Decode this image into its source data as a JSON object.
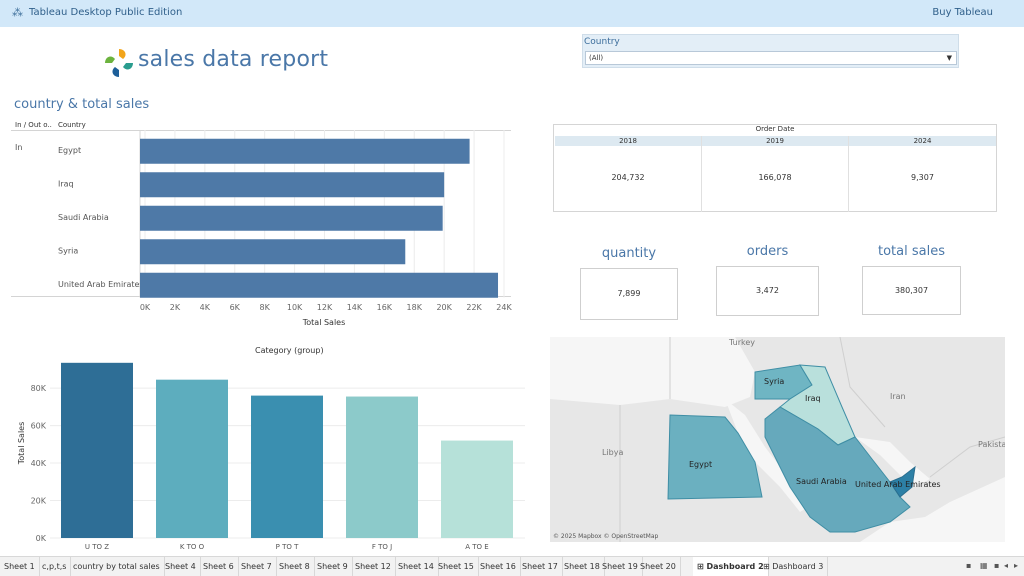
{
  "app": {
    "title": "Tableau Desktop Public Edition",
    "buy_label": "Buy Tableau"
  },
  "report": {
    "title": "sales data report"
  },
  "filter": {
    "label": "Country",
    "value": "(All)"
  },
  "bar_section": {
    "title": "country & total sales",
    "col_in_out": "In / Out o..",
    "col_country": "Country",
    "in_label": "In"
  },
  "order_table": {
    "title": "Order Date",
    "years": [
      "2018",
      "2019",
      "2024"
    ],
    "values": [
      "204,732",
      "166,078",
      "9,307"
    ]
  },
  "kpis": [
    {
      "label": "quantity",
      "value": "7,899"
    },
    {
      "label": "orders",
      "value": "3,472"
    },
    {
      "label": "total sales",
      "value": "380,307"
    }
  ],
  "map": {
    "attribution": "© 2025 Mapbox © OpenStreetMap",
    "labels": [
      "Turkey",
      "Iran",
      "Libya",
      "Pakista"
    ],
    "countries": [
      "Syria",
      "Iraq",
      "Egypt",
      "Saudi Arabia",
      "United Arab Emirates"
    ],
    "colors": {
      "Syria": "#6fb5c3",
      "Iraq": "#b9e0dc",
      "Egypt": "#6bb0c0",
      "Saudi Arabia": "#66a9bc",
      "United Arab Emirates": "#2d80a6"
    }
  },
  "chart_data": [
    {
      "type": "bar",
      "orientation": "horizontal",
      "categories": [
        "Egypt",
        "Iraq",
        "Saudi Arabia",
        "Syria",
        "United Arab Emirates"
      ],
      "values": [
        21700,
        20000,
        19900,
        17400,
        23600
      ],
      "xlabel": "Total Sales",
      "xlim": [
        0,
        24000
      ],
      "xticks": [
        "0K",
        "2K",
        "4K",
        "6K",
        "8K",
        "10K",
        "12K",
        "14K",
        "16K",
        "18K",
        "20K",
        "22K",
        "24K"
      ],
      "color": "#4e79a7",
      "grid": true
    },
    {
      "type": "bar",
      "title": "Category (group)",
      "categories": [
        "U TO Z",
        "K TO O",
        "P TO T",
        "F TO J",
        "A TO E"
      ],
      "values": [
        93500,
        84500,
        76000,
        75500,
        52000
      ],
      "ylabel": "Total Sales",
      "ylim": [
        0,
        95000
      ],
      "yticks": [
        "0K",
        "20K",
        "40K",
        "60K",
        "80K"
      ],
      "colors": [
        "#2e6e96",
        "#5dadbe",
        "#3a8fb0",
        "#8ccaca",
        "#b6e1d9"
      ],
      "grid": true
    }
  ],
  "tabs": [
    "Sheet 1",
    "c,p,t,s",
    "country by total sales",
    "Sheet 4",
    "Sheet 6",
    "Sheet 7",
    "Sheet 8",
    "Sheet 9",
    "Sheet 12",
    "Sheet 14",
    "Sheet 15",
    "Sheet 16",
    "Sheet 17",
    "Sheet 18",
    "Sheet 19",
    "Sheet 20",
    "⊞ Dashboard 2",
    "⊞ Dashboard 3"
  ],
  "active_tab": "⊞ Dashboard 2",
  "tab_nav": [
    "▪",
    "▦",
    "▪",
    "◂",
    "▸"
  ]
}
